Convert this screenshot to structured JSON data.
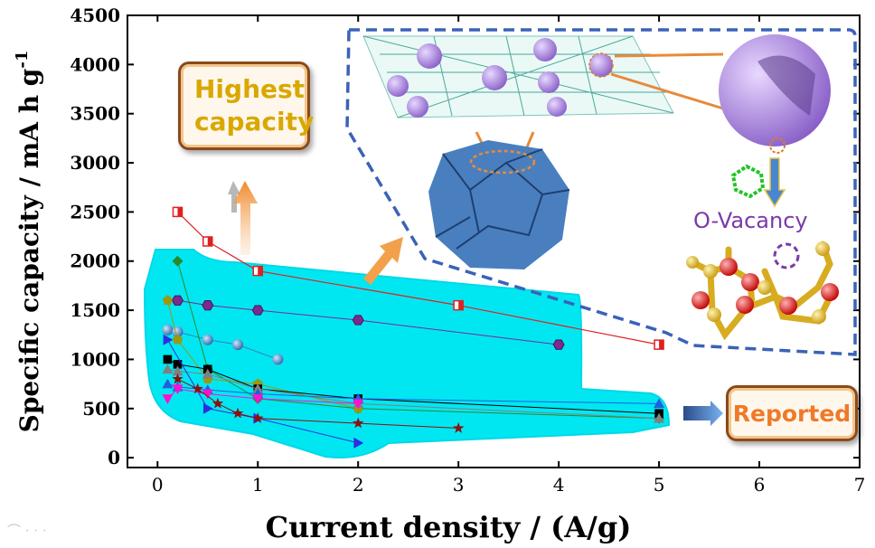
{
  "chart_data": {
    "type": "scatter",
    "xlabel": "Current density / (A/g)",
    "ylabel": "Specific capacity / mA h g",
    "ylabel_superscript": "-1",
    "xlim": [
      -0.3,
      7
    ],
    "ylim": [
      -100,
      4500
    ],
    "x_ticks": [
      0,
      1,
      2,
      3,
      4,
      5,
      6,
      7
    ],
    "y_ticks": [
      0,
      500,
      1000,
      1500,
      2000,
      2500,
      3000,
      3500,
      4000,
      4500
    ],
    "grid": false,
    "highlight_series": {
      "x": [
        0.2,
        0.5,
        1,
        3,
        5
      ],
      "y": [
        2500,
        2200,
        1900,
        1550,
        1150
      ],
      "color": "#e02020",
      "marker": "half-filled-square"
    },
    "series": [
      {
        "x": [
          0.2,
          0.5,
          1,
          2,
          4
        ],
        "y": [
          1600,
          1550,
          1500,
          1400,
          1150
        ],
        "color": "#7b2a8f",
        "marker": "hexagon"
      },
      {
        "x": [
          0.1,
          0.2,
          0.5,
          0.8,
          1.2
        ],
        "y": [
          1300,
          1280,
          1200,
          1150,
          1000
        ],
        "color": "#3a7fb8",
        "marker": "sphere"
      },
      {
        "x": [
          0.2,
          0.5,
          1,
          2,
          5
        ],
        "y": [
          2000,
          900,
          600,
          500,
          400
        ],
        "color": "#2a8a2a",
        "marker": "diamond"
      },
      {
        "x": [
          0.1,
          0.2,
          0.5,
          1,
          2
        ],
        "y": [
          1600,
          1200,
          800,
          750,
          500
        ],
        "color": "#9a9a10",
        "marker": "pentagon"
      },
      {
        "x": [
          0.1,
          0.2,
          0.5,
          1,
          2,
          5
        ],
        "y": [
          1000,
          950,
          900,
          700,
          600,
          450
        ],
        "color": "#000000",
        "marker": "square"
      },
      {
        "x": [
          0.1,
          0.2,
          0.5,
          1,
          2,
          5
        ],
        "y": [
          900,
          880,
          850,
          700,
          550,
          400
        ],
        "color": "#808080",
        "marker": "triangle-up"
      },
      {
        "x": [
          0.1,
          0.2,
          0.5,
          1,
          2,
          5
        ],
        "y": [
          750,
          720,
          690,
          650,
          600,
          550
        ],
        "color": "#1f5fe0",
        "marker": "triangle-up"
      },
      {
        "x": [
          0.1,
          0.5,
          1,
          2
        ],
        "y": [
          1200,
          500,
          400,
          150
        ],
        "color": "#2e2ee0",
        "marker": "triangle-right"
      },
      {
        "x": [
          0.1,
          0.2,
          0.5,
          1,
          2
        ],
        "y": [
          600,
          700,
          650,
          600,
          550
        ],
        "color": "#ff10d0",
        "marker": "triangle-down"
      },
      {
        "x": [
          0.2,
          0.4,
          0.6,
          0.8,
          1,
          2,
          3
        ],
        "y": [
          800,
          700,
          550,
          450,
          400,
          350,
          300
        ],
        "color": "#8b1010",
        "marker": "star"
      }
    ],
    "annotations": [
      "Highest capacity",
      "Reported",
      "O-Vacancy"
    ]
  }
}
